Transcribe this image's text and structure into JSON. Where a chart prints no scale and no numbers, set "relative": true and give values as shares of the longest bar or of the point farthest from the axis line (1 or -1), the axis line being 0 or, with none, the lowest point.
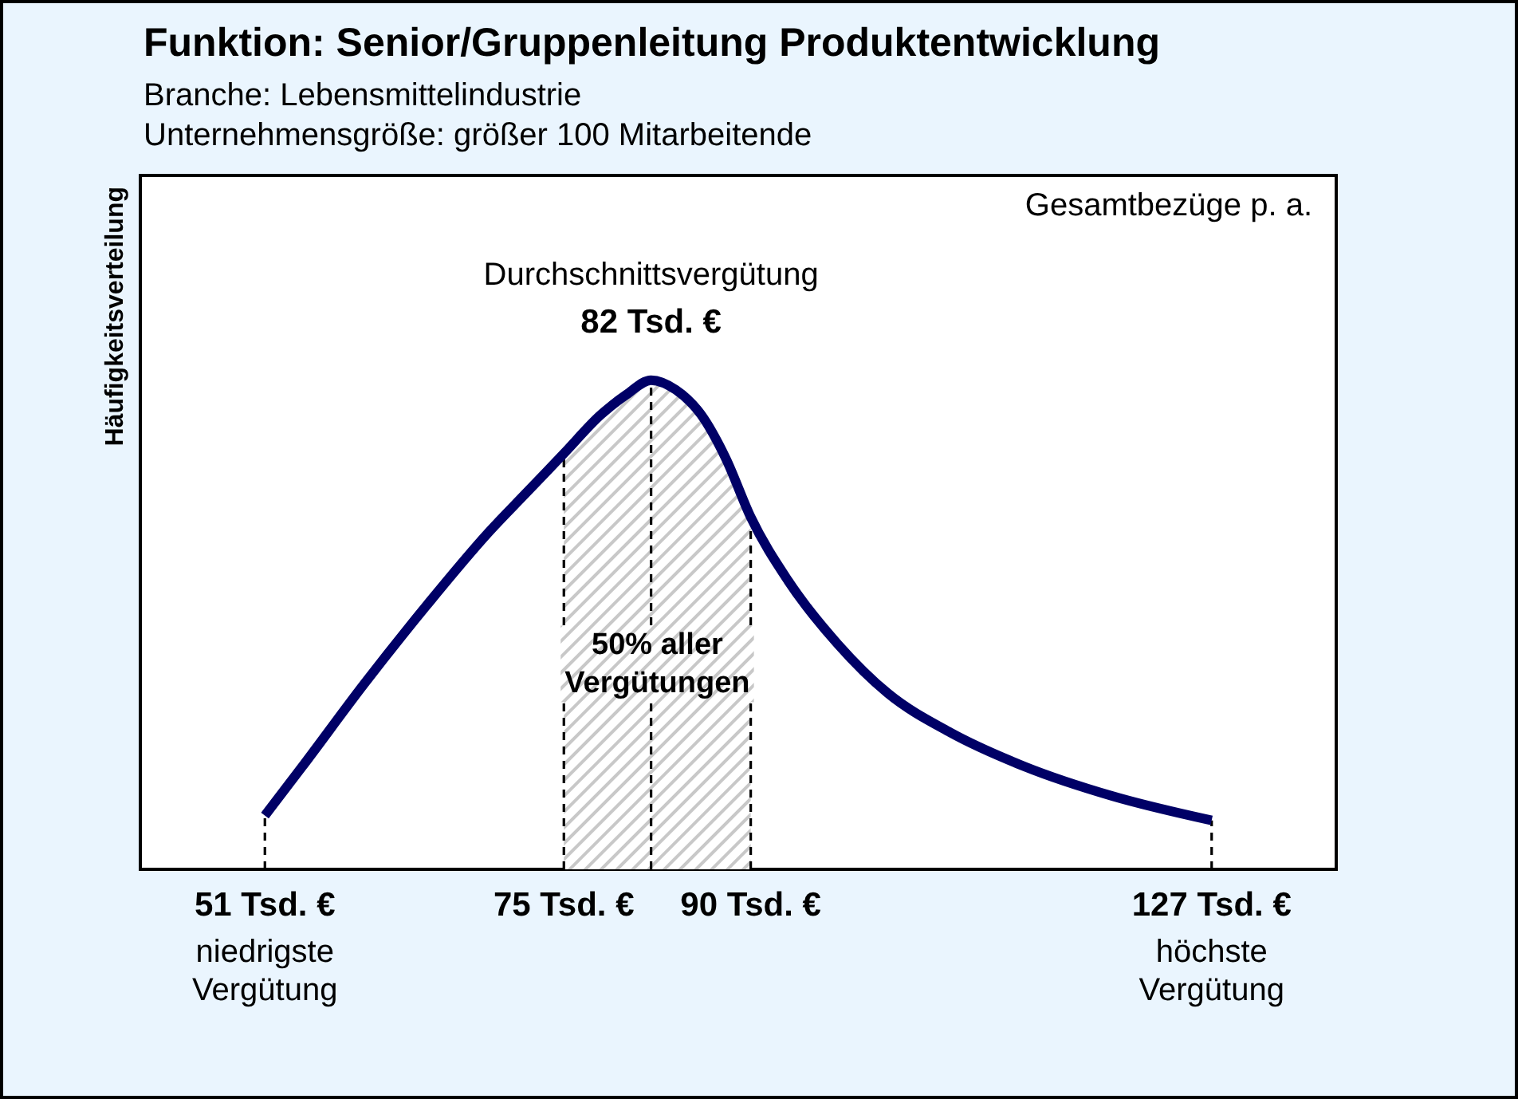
{
  "chart_data": {
    "type": "line",
    "title": "Funktion: Senior/Gruppenleitung Produktentwicklung",
    "subtitle": "Branche: Lebensmittelindustrie\nUnternehmensgröße: größer 100 Mitarbeitende",
    "ylabel": "Häufigkeitsverteilung",
    "relative": true,
    "x": [
      51,
      54,
      59,
      64,
      69,
      72,
      75,
      78,
      80,
      82,
      84,
      86,
      88,
      90,
      93,
      97,
      101,
      106,
      112,
      119,
      127
    ],
    "series": [
      {
        "color": "#000066",
        "values": [
          0.11,
          0.21,
          0.38,
          0.54,
          0.69,
          0.77,
          0.85,
          0.93,
          0.97,
          1,
          0.98,
          0.93,
          0.84,
          0.72,
          0.59,
          0.46,
          0.36,
          0.28,
          0.21,
          0.15,
          0.1
        ]
      }
    ],
    "xlim": [
      41,
      137
    ],
    "xticks": [
      {
        "value": 51,
        "label": "51 Tsd. €\nniedrigste\nVergütung"
      },
      {
        "value": 75,
        "label": "75 Tsd. €"
      },
      {
        "value": 90,
        "label": "90 Tsd. €"
      },
      {
        "value": 127,
        "label": "127 Tsd. €\nhöchste\nVergütung"
      }
    ],
    "ref_lines": [
      {
        "axis": "x",
        "value": 51,
        "color": "#000000",
        "line_style": "dashed"
      },
      {
        "axis": "x",
        "value": 75,
        "color": "#000000",
        "line_style": "dashed"
      },
      {
        "axis": "x",
        "value": 82,
        "color": "#000000",
        "line_style": "dashed"
      },
      {
        "axis": "x",
        "value": 90,
        "color": "#000000",
        "line_style": "dashed"
      },
      {
        "axis": "x",
        "value": 127,
        "color": "#000000",
        "line_style": "dashed"
      }
    ],
    "bands": [
      {
        "axis": "x",
        "from": 75,
        "to": 90,
        "label": "50% aller Vergütungen",
        "color": "#c8c8c8"
      }
    ],
    "annotations": [
      "Gesamtbezüge p. a.",
      {
        "text": "Durchschnittsvergütung",
        "x": 82,
        "y": 1
      },
      {
        "text": "82 Tsd. €",
        "x": 82,
        "y": 1
      }
    ]
  }
}
